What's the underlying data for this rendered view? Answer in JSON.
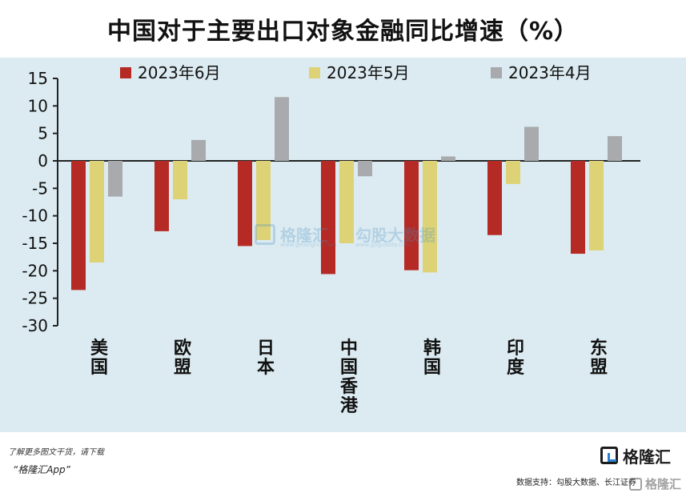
{
  "title": "中国对于主要出口对象金融同比增速（%）",
  "source": "数据支持：勾股大数据、长江证券",
  "footer": {
    "line1": "了解更多图文干货，请下载",
    "line2": "“格隆汇App”",
    "logo_text": "格隆汇",
    "corner_text": "格隆汇"
  },
  "watermark": {
    "left_text": "格隆汇",
    "left_sub": "www.gelonghui.com",
    "right_text": "勾股大数据",
    "right_sub": "www.gogudata.com"
  },
  "colors": {
    "series_1": "#b52a24",
    "series_2": "#ddd275",
    "series_3": "#a8aaad",
    "panel_bg": "#dcebf1"
  },
  "chart_data": {
    "type": "bar",
    "categories": [
      "美国",
      "欧盟",
      "日本",
      "中国香港",
      "韩国",
      "印度",
      "东盟"
    ],
    "series": [
      {
        "name": "2023年6月",
        "values": [
          -23.5,
          -12.8,
          -15.5,
          -20.6,
          -19.9,
          -13.5,
          -16.9
        ]
      },
      {
        "name": "2023年5月",
        "values": [
          -18.5,
          -7.0,
          -14.4,
          -15.0,
          -20.3,
          -4.2,
          -16.3
        ]
      },
      {
        "name": "2023年4月",
        "values": [
          -6.5,
          3.8,
          11.6,
          -2.8,
          0.8,
          6.2,
          4.5
        ]
      }
    ],
    "ylim": [
      -30,
      15
    ],
    "yticks": [
      15,
      10,
      5,
      0,
      -5,
      -10,
      -15,
      -20,
      -25,
      -30
    ],
    "legend_position": "top",
    "grid": false
  }
}
